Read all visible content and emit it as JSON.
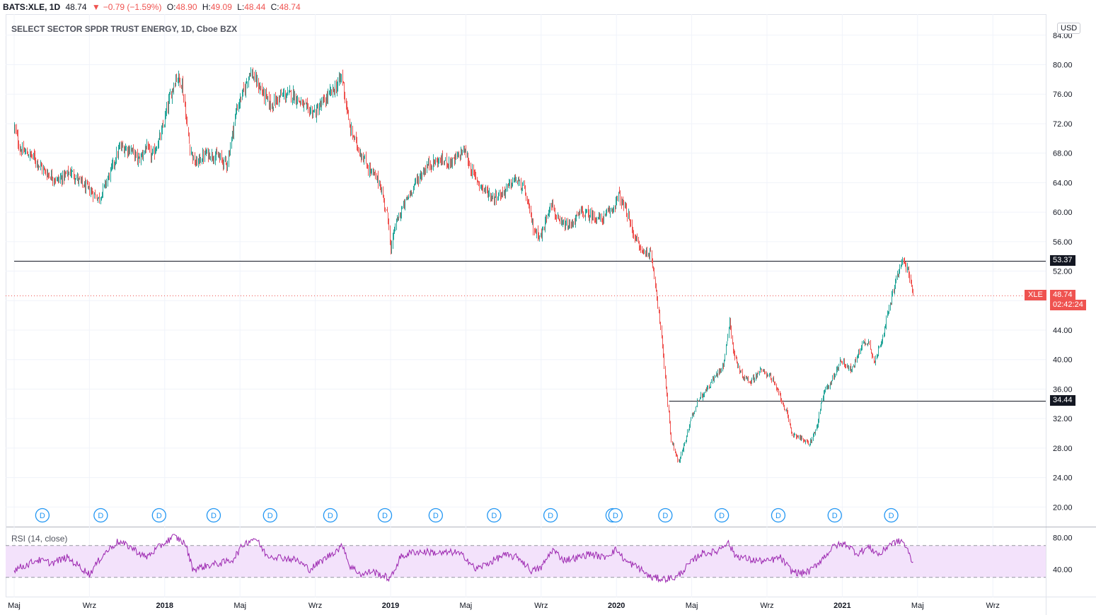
{
  "header": {
    "symbol": "BATS:XLE, 1D",
    "last": "48.74",
    "change_arrow": "▼",
    "change": "−0.79 (−1.59%)",
    "o_label": "O:",
    "o_value": "48.90",
    "h_label": "H:",
    "h_value": "49.09",
    "l_label": "L:",
    "l_value": "48.44",
    "c_label": "C:",
    "c_value": "48.74"
  },
  "subtitle": "SELECT SECTOR SPDR TRUST ENERGY, 1D, Cboe BZX",
  "currency": "USD",
  "symbol_tag": "XLE",
  "last_price_label": "48.74",
  "countdown": "02:42:24",
  "colors": {
    "up": "#26a69a",
    "down": "#ef5350",
    "rsi": "#9c27b0",
    "rsi_band": "#f3e2fb",
    "axis_text": "#131722"
  },
  "chart_data": [
    {
      "type": "candlestick",
      "title": "SELECT SECTOR SPDR TRUST ENERGY, 1D, Cboe BZX",
      "ylim": [
        18,
        86
      ],
      "y_ticks": [
        "84.00",
        "80.00",
        "76.00",
        "72.00",
        "68.00",
        "64.00",
        "60.00",
        "56.00",
        "52.00",
        "48.00",
        "44.00",
        "40.00",
        "36.00",
        "32.00",
        "28.00",
        "24.00",
        "20.00"
      ],
      "x_ticks": [
        "Maj",
        "Wrz",
        "2018",
        "Maj",
        "Wrz",
        "2019",
        "Maj",
        "Wrz",
        "2020",
        "Maj",
        "Wrz",
        "2021",
        "Maj",
        "Wrz"
      ],
      "x_tick_months": [
        0,
        4,
        8,
        12,
        16,
        20,
        24,
        28,
        32,
        36,
        40,
        44,
        48,
        52
      ],
      "price_path": [
        [
          0.0,
          71.5
        ],
        [
          0.3,
          68.5
        ],
        [
          1.0,
          67.5
        ],
        [
          1.6,
          65.5
        ],
        [
          2.3,
          64.3
        ],
        [
          3.0,
          65.5
        ],
        [
          3.6,
          63.8
        ],
        [
          4.2,
          62.5
        ],
        [
          4.5,
          61.8
        ],
        [
          5.0,
          64.8
        ],
        [
          5.6,
          68.8
        ],
        [
          6.2,
          68.5
        ],
        [
          6.6,
          67.0
        ],
        [
          7.0,
          68.8
        ],
        [
          7.3,
          67.5
        ],
        [
          7.8,
          70.5
        ],
        [
          8.2,
          75.0
        ],
        [
          8.6,
          78.5
        ],
        [
          8.9,
          77.5
        ],
        [
          9.3,
          69.0
        ],
        [
          9.6,
          66.5
        ],
        [
          10.2,
          68.0
        ],
        [
          10.8,
          67.5
        ],
        [
          11.3,
          66.5
        ],
        [
          11.8,
          74.0
        ],
        [
          12.2,
          76.5
        ],
        [
          12.5,
          79.2
        ],
        [
          13.0,
          77.0
        ],
        [
          13.6,
          74.5
        ],
        [
          14.2,
          75.8
        ],
        [
          14.8,
          76.0
        ],
        [
          15.5,
          74.0
        ],
        [
          16.0,
          73.5
        ],
        [
          16.6,
          75.5
        ],
        [
          17.1,
          77.0
        ],
        [
          17.4,
          78.5
        ],
        [
          17.8,
          71.5
        ],
        [
          18.3,
          68.5
        ],
        [
          18.8,
          66.0
        ],
        [
          19.4,
          64.0
        ],
        [
          19.9,
          58.5
        ],
        [
          20.0,
          54.5
        ],
        [
          20.2,
          58.0
        ],
        [
          20.7,
          61.0
        ],
        [
          21.3,
          64.0
        ],
        [
          22.0,
          66.5
        ],
        [
          22.6,
          67.0
        ],
        [
          23.3,
          66.8
        ],
        [
          23.9,
          68.5
        ],
        [
          24.3,
          65.5
        ],
        [
          24.8,
          63.5
        ],
        [
          25.4,
          62.0
        ],
        [
          25.9,
          62.5
        ],
        [
          26.6,
          64.5
        ],
        [
          27.1,
          63.0
        ],
        [
          27.6,
          57.5
        ],
        [
          28.0,
          56.8
        ],
        [
          28.5,
          61.5
        ],
        [
          28.9,
          58.5
        ],
        [
          29.5,
          58.0
        ],
        [
          30.1,
          60.0
        ],
        [
          30.7,
          59.5
        ],
        [
          31.2,
          59.0
        ],
        [
          31.8,
          60.5
        ],
        [
          32.1,
          62.3
        ],
        [
          32.6,
          59.5
        ],
        [
          32.9,
          57.0
        ],
        [
          33.3,
          54.8
        ],
        [
          33.8,
          54.3
        ],
        [
          34.0,
          51.5
        ],
        [
          34.3,
          45.0
        ],
        [
          34.6,
          37.0
        ],
        [
          34.9,
          29.0
        ],
        [
          35.3,
          26.0
        ],
        [
          35.6,
          28.5
        ],
        [
          35.9,
          31.5
        ],
        [
          36.3,
          34.5
        ],
        [
          36.8,
          36.0
        ],
        [
          37.3,
          38.0
        ],
        [
          37.7,
          39.5
        ],
        [
          38.0,
          45.5
        ],
        [
          38.2,
          41.0
        ],
        [
          38.6,
          38.0
        ],
        [
          39.1,
          37.0
        ],
        [
          39.6,
          38.5
        ],
        [
          40.1,
          38.0
        ],
        [
          40.6,
          35.5
        ],
        [
          41.0,
          33.0
        ],
        [
          41.3,
          30.0
        ],
        [
          41.7,
          29.5
        ],
        [
          42.2,
          28.5
        ],
        [
          42.6,
          30.5
        ],
        [
          43.0,
          35.5
        ],
        [
          43.5,
          37.5
        ],
        [
          43.9,
          40.0
        ],
        [
          44.5,
          38.5
        ],
        [
          45.0,
          42.0
        ],
        [
          45.4,
          42.5
        ],
        [
          45.7,
          39.5
        ],
        [
          46.1,
          43.0
        ],
        [
          46.4,
          46.0
        ],
        [
          46.8,
          50.5
        ],
        [
          47.2,
          53.5
        ],
        [
          47.5,
          52.0
        ],
        [
          47.75,
          48.74
        ]
      ],
      "levels": [
        {
          "value": 53.37,
          "label": "53.37",
          "from_month": 0
        },
        {
          "value": 34.44,
          "label": "34.44",
          "from_month": 34.8
        }
      ],
      "last_price": 48.74,
      "dividend_marker": "D",
      "dividend_months": [
        1.5,
        4.6,
        7.7,
        10.6,
        13.6,
        16.8,
        19.7,
        22.4,
        25.5,
        28.5,
        31.8,
        31.95,
        34.6,
        37.6,
        40.6,
        43.6,
        46.6
      ]
    },
    {
      "type": "line",
      "title": "RSI (14, close)",
      "ylim": [
        20,
        90
      ],
      "y_ticks": [
        "80.00",
        "40.00"
      ],
      "band": [
        30,
        70
      ],
      "rsi_path": [
        [
          0.0,
          40
        ],
        [
          0.6,
          45
        ],
        [
          1.2,
          52
        ],
        [
          2.0,
          48
        ],
        [
          2.8,
          55
        ],
        [
          3.4,
          45
        ],
        [
          4.0,
          34
        ],
        [
          4.7,
          58
        ],
        [
          5.5,
          75
        ],
        [
          6.2,
          68
        ],
        [
          7.0,
          55
        ],
        [
          7.8,
          70
        ],
        [
          8.5,
          82
        ],
        [
          9.1,
          72
        ],
        [
          9.5,
          40
        ],
        [
          10.3,
          45
        ],
        [
          11.0,
          48
        ],
        [
          11.6,
          52
        ],
        [
          12.2,
          72
        ],
        [
          12.8,
          80
        ],
        [
          13.4,
          58
        ],
        [
          14.2,
          55
        ],
        [
          15.0,
          52
        ],
        [
          15.7,
          40
        ],
        [
          16.3,
          50
        ],
        [
          17.0,
          62
        ],
        [
          17.5,
          70
        ],
        [
          17.8,
          45
        ],
        [
          18.5,
          33
        ],
        [
          19.0,
          38
        ],
        [
          19.6,
          32
        ],
        [
          20.0,
          28
        ],
        [
          20.5,
          55
        ],
        [
          21.2,
          62
        ],
        [
          22.0,
          62
        ],
        [
          22.7,
          60
        ],
        [
          23.4,
          62
        ],
        [
          24.0,
          55
        ],
        [
          24.5,
          40
        ],
        [
          25.2,
          48
        ],
        [
          26.0,
          58
        ],
        [
          26.8,
          55
        ],
        [
          27.5,
          38
        ],
        [
          28.0,
          42
        ],
        [
          28.6,
          65
        ],
        [
          29.2,
          52
        ],
        [
          30.0,
          55
        ],
        [
          30.6,
          60
        ],
        [
          31.3,
          55
        ],
        [
          32.0,
          65
        ],
        [
          32.5,
          50
        ],
        [
          33.2,
          42
        ],
        [
          33.8,
          30
        ],
        [
          34.5,
          28
        ],
        [
          35.2,
          30
        ],
        [
          35.8,
          45
        ],
        [
          36.5,
          60
        ],
        [
          37.3,
          62
        ],
        [
          37.9,
          75
        ],
        [
          38.3,
          58
        ],
        [
          39.1,
          52
        ],
        [
          40.0,
          50
        ],
        [
          40.7,
          55
        ],
        [
          41.3,
          38
        ],
        [
          41.8,
          35
        ],
        [
          42.3,
          38
        ],
        [
          43.0,
          55
        ],
        [
          43.6,
          70
        ],
        [
          44.2,
          72
        ],
        [
          44.8,
          60
        ],
        [
          45.4,
          68
        ],
        [
          46.0,
          58
        ],
        [
          46.5,
          72
        ],
        [
          47.2,
          76
        ],
        [
          47.5,
          62
        ],
        [
          47.75,
          48
        ]
      ]
    }
  ]
}
